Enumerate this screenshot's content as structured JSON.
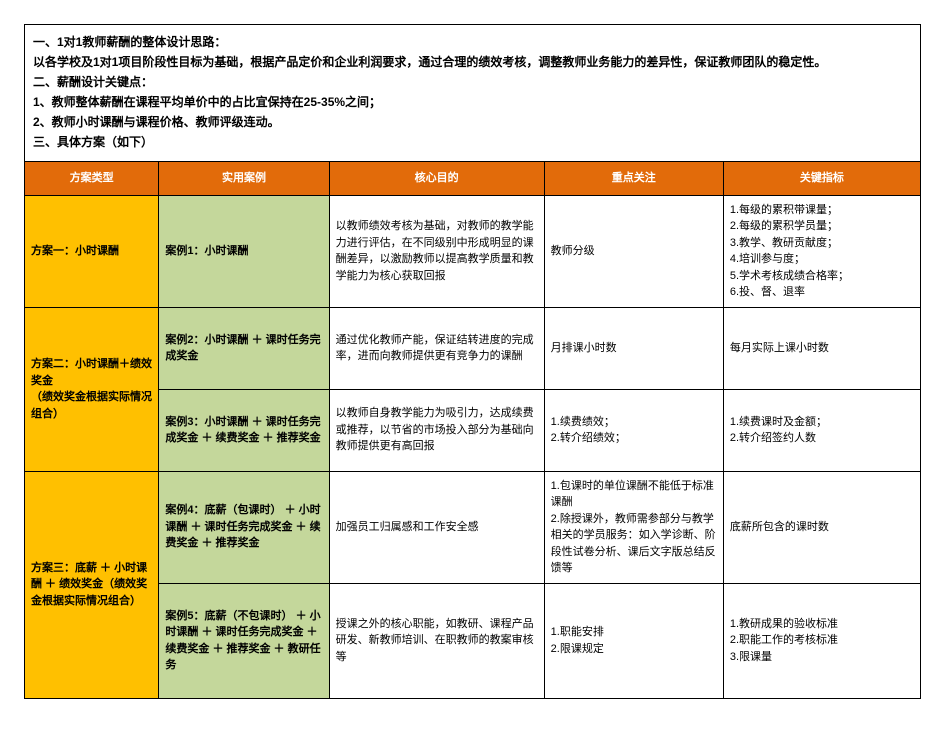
{
  "colors": {
    "header_bg": "#e26b0a",
    "plan_bg": "#ffc000",
    "case_bg": "#c4d79b"
  },
  "intro": {
    "l1": "一、1对1教师薪酬的整体设计思路：",
    "l2": "以各学校及1对1项目阶段性目标为基础，根据产品定价和企业利润要求，通过合理的绩效考核，调整教师业务能力的差异性，保证教师团队的稳定性。",
    "l3": "二、薪酬设计关键点：",
    "l4": "1、教师整体薪酬在课程平均单价中的占比宜保持在25-35%之间；",
    "l5": "2、教师小时课酬与课程价格、教师评级连动。",
    "l6": "三、具体方案（如下）"
  },
  "headers": {
    "plan": "方案类型",
    "case": "实用案例",
    "core": "核心目的",
    "focus": "重点关注",
    "metric": "关键指标"
  },
  "r1": {
    "plan": "方案一：小时课酬",
    "case": "案例1：小时课酬",
    "core": "以教师绩效考核为基础，对教师的教学能力进行评估，在不同级别中形成明显的课酬差异，以激励教师以提高教学质量和教学能力为核心获取回报",
    "focus": "教师分级",
    "metric": "1.每级的累积带课量；\n2.每级的累积学员量；\n3.教学、教研贡献度；\n4.培训参与度；\n5.学术考核成绩合格率；\n6.投、督、退率"
  },
  "r2": {
    "plan": "方案二：小时课酬＋绩效奖金\n（绩效奖金根据实际情况组合）",
    "case": "案例2：小时课酬 ＋ 课时任务完成奖金",
    "core": "通过优化教师产能，保证结转进度的完成率，进而向教师提供更有竞争力的课酬",
    "focus": "月排课小时数",
    "metric": "每月实际上课小时数"
  },
  "r3": {
    "case": "案例3：小时课酬 ＋ 课时任务完成奖金 ＋ 续费奖金 ＋ 推荐奖金",
    "core": "以教师自身教学能力为吸引力，达成续费或推荐，以节省的市场投入部分为基础向教师提供更有高回报",
    "focus": "1.续费绩效；\n2.转介绍绩效；",
    "metric": "1.续费课时及金额；\n2.转介绍签约人数"
  },
  "r4": {
    "plan": "方案三：底薪 ＋ 小时课酬 ＋ 绩效奖金（绩效奖金根据实际情况组合）",
    "case": "案例4：底薪（包课时） ＋ 小时课酬 ＋ 课时任务完成奖金 ＋ 续费奖金 ＋ 推荐奖金",
    "core": "加强员工归属感和工作安全感",
    "focus": "1.包课时的单位课酬不能低于标准课酬\n2.除授课外，教师需参部分与教学相关的学员服务：如入学诊断、阶段性试卷分析、课后文字版总结反馈等",
    "metric": "底薪所包含的课时数"
  },
  "r5": {
    "case": "案例5：底薪（不包课时） ＋ 小时课酬 ＋ 课时任务完成奖金 ＋ 续费奖金 ＋ 推荐奖金 ＋ 教研任务",
    "core": "授课之外的核心职能，如教研、课程产品研发、新教师培训、在职教师的教案审核等",
    "focus": "1.职能安排\n2.限课规定",
    "metric": "1.教研成果的验收标准\n2.职能工作的考核标准\n3.限课量"
  }
}
